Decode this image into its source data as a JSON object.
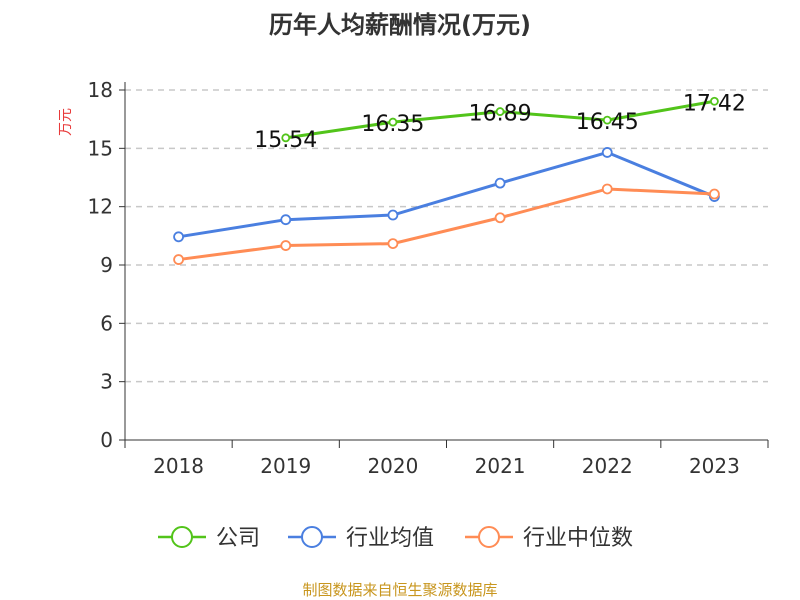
{
  "chart_data": {
    "type": "line",
    "title": "历年人均薪酬情况(万元)",
    "ylabel": "万元",
    "xlabel": "",
    "categories": [
      "2018",
      "2019",
      "2020",
      "2021",
      "2022",
      "2023"
    ],
    "ylim": [
      0,
      18
    ],
    "yticks": [
      "0",
      "3",
      "6",
      "9",
      "12",
      "15",
      "18"
    ],
    "grid": true,
    "legend_position": "bottom",
    "series": [
      {
        "name": "公司",
        "color": "#52c41a",
        "values": [
          null,
          15.54,
          16.35,
          16.89,
          16.45,
          17.42
        ],
        "labels": [
          "",
          "15.54",
          "16.35",
          "16.89",
          "16.45",
          "17.42"
        ]
      },
      {
        "name": "行业均值",
        "color": "#4a7fe0",
        "values": [
          10.45,
          11.33,
          11.57,
          13.21,
          14.79,
          12.52
        ]
      },
      {
        "name": "行业中位数",
        "color": "#ff8c55",
        "values": [
          9.28,
          10.0,
          10.1,
          11.43,
          12.91,
          12.65
        ]
      }
    ]
  },
  "footer": "制图数据来自恒生聚源数据库"
}
